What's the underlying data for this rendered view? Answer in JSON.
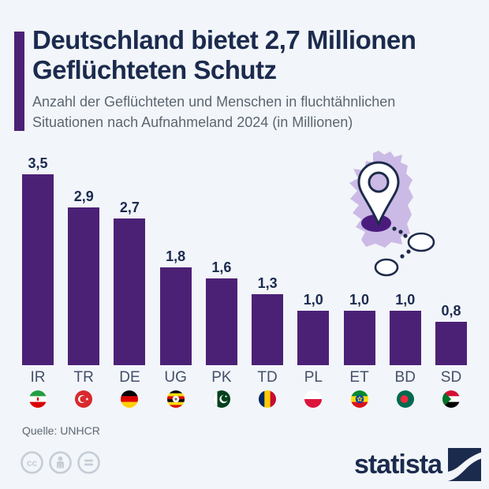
{
  "header": {
    "title_line1": "Deutschland bietet 2,7 Millionen",
    "title_line2": "Geflüchteten Schutz",
    "subtitle_line1": "Anzahl der Geflüchteten und Menschen in fluchtähnlichen",
    "subtitle_line2": "Situationen nach Aufnahmeland 2024 (in Millionen)"
  },
  "chart_data": {
    "type": "bar",
    "title": "Deutschland bietet 2,7 Millionen Geflüchteten Schutz",
    "categories": [
      "IR",
      "TR",
      "DE",
      "UG",
      "PK",
      "TD",
      "PL",
      "ET",
      "BD",
      "SD"
    ],
    "values": [
      3.5,
      2.9,
      2.7,
      1.8,
      1.6,
      1.3,
      1.0,
      1.0,
      1.0,
      0.8
    ],
    "value_labels": [
      "3,5",
      "2,9",
      "2,7",
      "1,8",
      "1,6",
      "1,3",
      "1,0",
      "1,0",
      "1,0",
      "0,8"
    ],
    "flag_icons": [
      "flag-iran-icon",
      "flag-turkey-icon",
      "flag-germany-icon",
      "flag-uganda-icon",
      "flag-pakistan-icon",
      "flag-chad-icon",
      "flag-poland-icon",
      "flag-ethiopia-icon",
      "flag-bangladesh-icon",
      "flag-sudan-icon"
    ],
    "xlabel": "",
    "ylabel": "",
    "ylim": [
      0,
      3.5
    ],
    "grid": false,
    "legend": false,
    "bar_color": "#4b2176",
    "illustration": "germany-map-location-pin"
  },
  "footer": {
    "source": "Quelle: UNHCR",
    "brand": "statista",
    "license_icons": [
      "cc-icon",
      "person-icon",
      "equals-icon"
    ]
  },
  "colors": {
    "background": "#f2f5f9",
    "accent_purple": "#4b2176",
    "title_navy": "#1b2b4e",
    "subtitle_gray": "#5b6672",
    "map_lavender": "#cbbae6",
    "pin_outline_navy": "#1e2b4a",
    "pin_base_purple": "#4a1b7d",
    "license_gray": "#c5cdd7"
  }
}
